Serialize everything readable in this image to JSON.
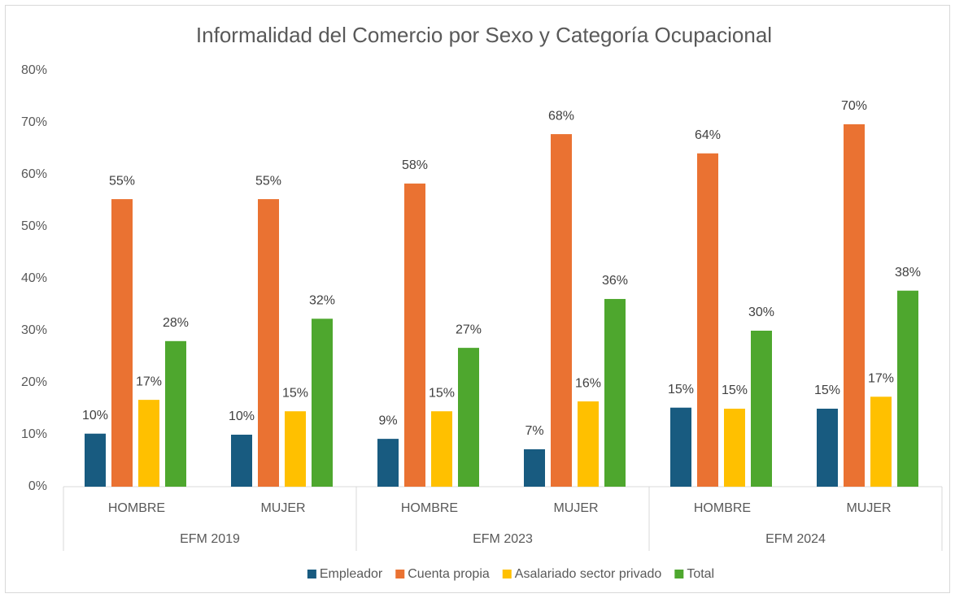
{
  "chart_data": {
    "type": "bar",
    "title": "Informalidad del Comercio por Sexo y Categoría Ocupacional",
    "categories": [
      "HOMBRE",
      "MUJER",
      "HOMBRE",
      "MUJER",
      "HOMBRE",
      "MUJER"
    ],
    "groups": [
      "EFM 2019",
      "EFM 2023",
      "EFM 2024"
    ],
    "series": [
      {
        "name": "Empleador",
        "color": "#185b80",
        "values": [
          10.2,
          10.0,
          9.2,
          7.2,
          15.2,
          15.0
        ],
        "value_labels": [
          "10%",
          "10%",
          "9%",
          "7%",
          "15%",
          "15%"
        ]
      },
      {
        "name": "Cuenta propia",
        "color": "#ea7232",
        "values": [
          55.3,
          55.3,
          58.3,
          67.8,
          64.1,
          69.7
        ],
        "value_labels": [
          "55%",
          "55%",
          "58%",
          "68%",
          "64%",
          "70%"
        ]
      },
      {
        "name": "Asalariado sector privado",
        "color": "#ffc000",
        "values": [
          16.7,
          14.5,
          14.5,
          16.4,
          15.0,
          17.3
        ],
        "value_labels": [
          "17%",
          "15%",
          "15%",
          "16%",
          "15%",
          "17%"
        ]
      },
      {
        "name": "Total",
        "color": "#4ea72e",
        "values": [
          28.0,
          32.3,
          26.7,
          36.1,
          30.0,
          37.7
        ],
        "value_labels": [
          "28%",
          "32%",
          "27%",
          "36%",
          "30%",
          "38%"
        ]
      }
    ],
    "ylim": [
      0,
      80
    ],
    "yticks": [
      {
        "value": 0,
        "label": "0%"
      },
      {
        "value": 10,
        "label": "10%"
      },
      {
        "value": 20,
        "label": "20%"
      },
      {
        "value": 30,
        "label": "30%"
      },
      {
        "value": 40,
        "label": "40%"
      },
      {
        "value": 50,
        "label": "50%"
      },
      {
        "value": 60,
        "label": "60%"
      },
      {
        "value": 70,
        "label": "70%"
      },
      {
        "value": 80,
        "label": "80%"
      }
    ],
    "grid": false,
    "legend": "bottom"
  }
}
